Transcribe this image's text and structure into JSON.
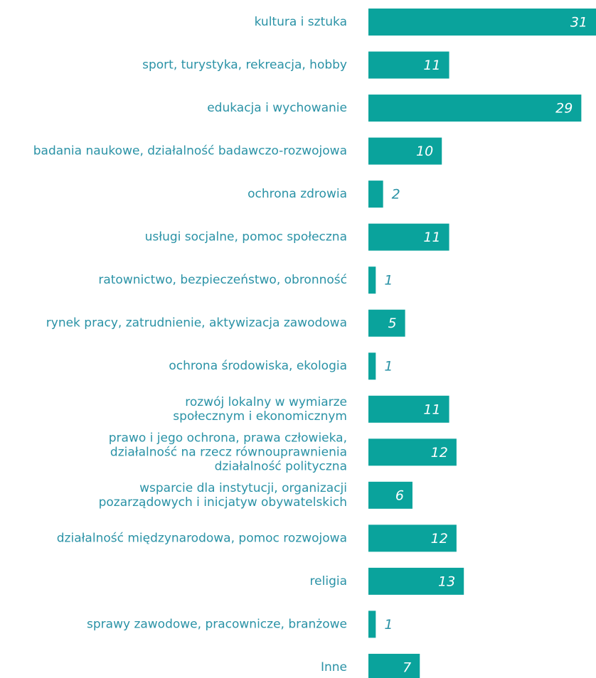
{
  "chart_data": {
    "type": "barh",
    "color": "#0aa39c",
    "label_color": "#2a92a6",
    "categories": [
      [
        "kultura i sztuka"
      ],
      [
        "sport, turystyka, rekreacja, hobby"
      ],
      [
        "edukacja i wychowanie"
      ],
      [
        "badania naukowe, działalność badawczo-rozwojowa"
      ],
      [
        "ochrona zdrowia"
      ],
      [
        "usługi socjalne, pomoc społeczna"
      ],
      [
        "ratownictwo, bezpieczeństwo, obronność"
      ],
      [
        "rynek pracy, zatrudnienie, aktywizacja zawodowa"
      ],
      [
        "ochrona środowiska, ekologia"
      ],
      [
        "rozwój lokalny w wymiarze",
        "społecznym i ekonomicznym"
      ],
      [
        "prawo i jego ochrona, prawa człowieka,",
        "działalność na rzecz równouprawnienia",
        "działalność polityczna"
      ],
      [
        "wsparcie dla instytucji, organizacji",
        "pozarządowych i inicjatyw obywatelskich"
      ],
      [
        "działalność międzynarodowa, pomoc rozwojowa"
      ],
      [
        "religia"
      ],
      [
        "sprawy zawodowe, pracownicze, branżowe"
      ],
      [
        "Inne"
      ]
    ],
    "values": [
      31,
      11,
      29,
      10,
      2,
      11,
      1,
      5,
      1,
      11,
      12,
      6,
      12,
      13,
      1,
      7
    ]
  }
}
